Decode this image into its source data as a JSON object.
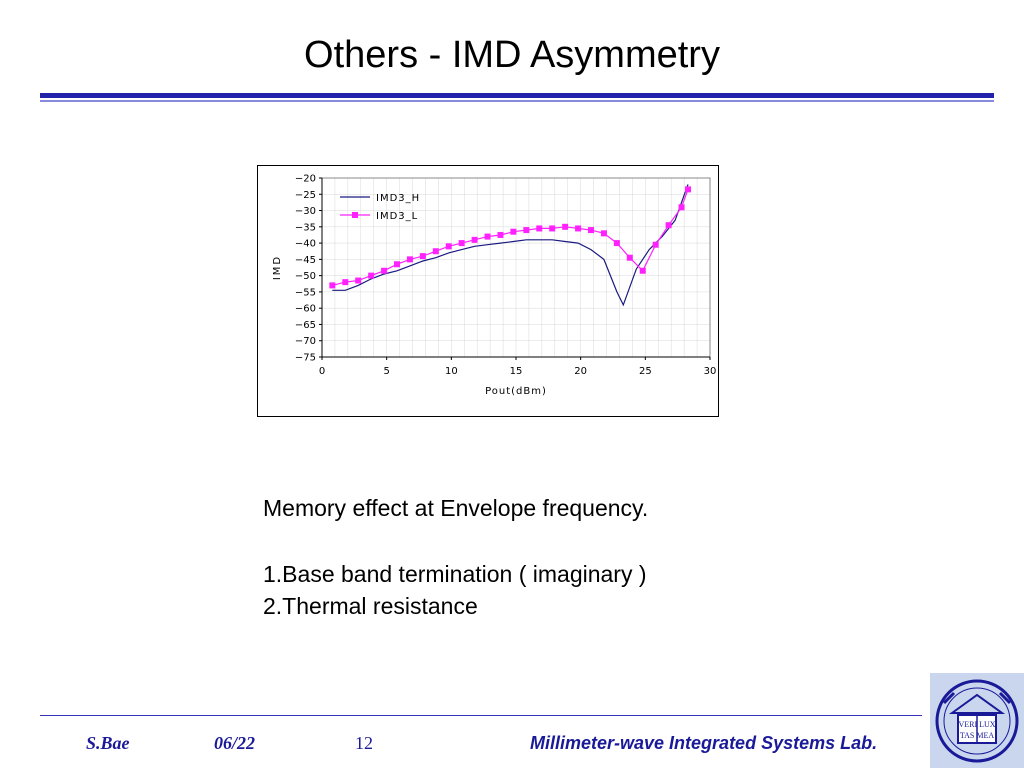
{
  "slide": {
    "title": "Others - IMD Asymmetry",
    "body": {
      "line1": "Memory effect at Envelope frequency.",
      "line2": "1.Base band termination ( imaginary )",
      "line3": "2.Thermal resistance"
    },
    "footer": {
      "author": "S.Bae",
      "date": "06/22",
      "page": "12",
      "lab": "Millimeter-wave Integrated Systems Lab."
    },
    "logo": {
      "text_top": "VERI LUX",
      "text_bottom": "TAS MEA",
      "color": "#1a1a99"
    }
  },
  "chart_data": {
    "type": "line",
    "xlabel": "Pout(dBm)",
    "ylabel": "IMD",
    "xlim": [
      0,
      30
    ],
    "ylim": [
      -75,
      -20
    ],
    "xticks": [
      0,
      5,
      10,
      15,
      20,
      25,
      30
    ],
    "yticks": [
      -20,
      -25,
      -30,
      -35,
      -40,
      -45,
      -50,
      -55,
      -60,
      -65,
      -70,
      -75
    ],
    "grid": true,
    "legend": "top-left",
    "series": [
      {
        "name": "IMD3_H",
        "color": "#1a1a80",
        "marker": "none",
        "x": [
          0.8,
          1.8,
          2.8,
          3.8,
          4.8,
          5.8,
          6.8,
          7.8,
          8.8,
          9.8,
          10.8,
          11.8,
          12.8,
          13.8,
          14.8,
          15.8,
          16.8,
          17.8,
          18.8,
          19.8,
          20.8,
          21.8,
          22.8,
          23.3,
          24.3,
          25.3,
          26.3,
          27.3,
          28.3
        ],
        "y": [
          -54.5,
          -54.5,
          -53,
          -51,
          -49.5,
          -48.5,
          -47,
          -45.5,
          -44.5,
          -43,
          -42,
          -41,
          -40.5,
          -40,
          -39.5,
          -39,
          -39,
          -39,
          -39.5,
          -40,
          -42,
          -45,
          -55,
          -59,
          -48,
          -42,
          -38,
          -33,
          -22
        ]
      },
      {
        "name": "IMD3_L",
        "color": "#ff22ff",
        "marker": "square",
        "x": [
          0.8,
          1.8,
          2.8,
          3.8,
          4.8,
          5.8,
          6.8,
          7.8,
          8.8,
          9.8,
          10.8,
          11.8,
          12.8,
          13.8,
          14.8,
          15.8,
          16.8,
          17.8,
          18.8,
          19.8,
          20.8,
          21.8,
          22.8,
          23.8,
          24.8,
          25.8,
          26.8,
          27.8,
          28.3
        ],
        "y": [
          -53,
          -52,
          -51.5,
          -50,
          -48.5,
          -46.5,
          -45,
          -44,
          -42.5,
          -41,
          -40,
          -39,
          -38,
          -37.5,
          -36.5,
          -36,
          -35.5,
          -35.5,
          -35,
          -35.5,
          -36,
          -37,
          -40,
          -44.5,
          -48.5,
          -40.5,
          -34.5,
          -29,
          -23.5
        ]
      }
    ]
  }
}
